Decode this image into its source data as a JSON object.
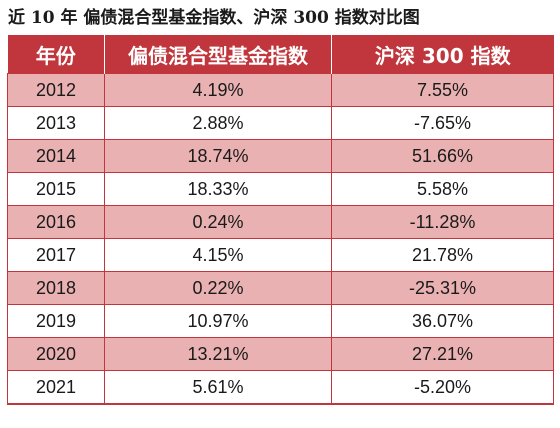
{
  "title": "近 10 年  偏债混合型基金指数、沪深 300 指数对比图",
  "colors": {
    "header_bg": "#c0363c",
    "shaded_row": "#eab1b3",
    "border": "#c0363c"
  },
  "table": {
    "headers": [
      "年份",
      "偏债混合型基金指数",
      "沪深 300 指数"
    ],
    "rows": [
      [
        "2012",
        "4.19%",
        "7.55%"
      ],
      [
        "2013",
        "2.88%",
        "-7.65%"
      ],
      [
        "2014",
        "18.74%",
        "51.66%"
      ],
      [
        "2015",
        "18.33%",
        "5.58%"
      ],
      [
        "2016",
        "0.24%",
        "-11.28%"
      ],
      [
        "2017",
        "4.15%",
        "21.78%"
      ],
      [
        "2018",
        "0.22%",
        "-25.31%"
      ],
      [
        "2019",
        "10.97%",
        "36.07%"
      ],
      [
        "2020",
        "13.21%",
        "27.21%"
      ],
      [
        "2021",
        "5.61%",
        "-5.20%"
      ]
    ]
  }
}
